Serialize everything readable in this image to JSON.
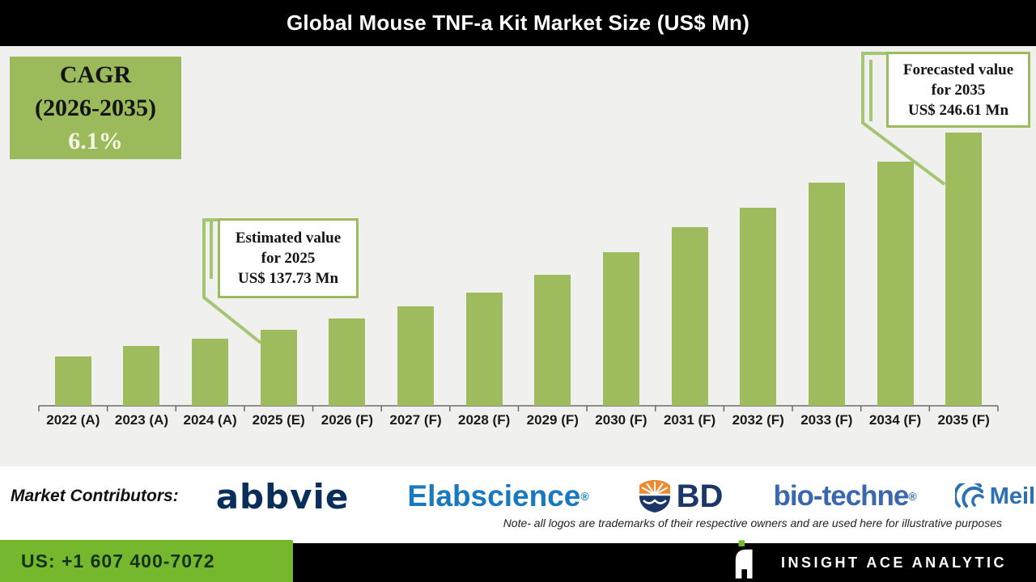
{
  "header": {
    "title": "Global Mouse TNF-a Kit Market Size (US$ Mn)"
  },
  "cagr_box": {
    "title": "CAGR",
    "range": "(2026-2035)",
    "value": "6.1%"
  },
  "callout_estimated": {
    "line1": "Estimated value",
    "line2": "for 2025",
    "line3": "US$ 137.73 Mn"
  },
  "callout_forecasted": {
    "line1": "Forecasted value",
    "line2": "for 2035",
    "line3": "US$ 246.61 Mn"
  },
  "chart_data": {
    "type": "bar",
    "title": "Global Mouse TNF-a Kit Market Size (US$ Mn)",
    "unit": "US$ Mn",
    "categories": [
      "2022 (A)",
      "2023 (A)",
      "2024 (A)",
      "2025 (E)",
      "2026 (F)",
      "2027 (F)",
      "2028 (F)",
      "2029 (F)",
      "2030 (F)",
      "2031 (F)",
      "2032 (F)",
      "2033 (F)",
      "2034 (F)",
      "2035 (F)"
    ],
    "values": [
      123.1,
      128.9,
      132.9,
      137.73,
      144.0,
      150.7,
      158.2,
      168.0,
      180.4,
      194.2,
      204.9,
      218.7,
      230.2,
      246.61
    ],
    "ylim": [
      96,
      294
    ],
    "grid": false,
    "legend": false,
    "bar_color": "#9EBB5E",
    "cagr": {
      "label": "CAGR (2026-2035)",
      "value_pct": 6.1
    },
    "annotations": [
      {
        "target": "2025 (E)",
        "text": "Estimated value for 2025 US$ 137.73 Mn",
        "value": 137.73
      },
      {
        "target": "2035 (F)",
        "text": "Forecasted value for 2035 US$ 246.61 Mn",
        "value": 246.61
      }
    ]
  },
  "contributors": {
    "label": "Market Contributors:",
    "logos": [
      {
        "name": "abbvie",
        "text": "abbvie"
      },
      {
        "name": "Elabscience",
        "text": "Elabscience",
        "reg": "®"
      },
      {
        "name": "BD",
        "text": "BD"
      },
      {
        "name": "bio-techne",
        "text": "bio-techne",
        "reg": "®"
      },
      {
        "name": "MeilunBio",
        "text": "MeilunBio",
        "reg": "®"
      }
    ]
  },
  "note": "Note- all logos are trademarks of their respective owners and are used here for illustrative purposes",
  "footer": {
    "phone": "US: +1 607 400-7072",
    "brand": "INSIGHT ACE ANALYTIC"
  },
  "colors": {
    "bar": "#9EBB5E",
    "leader_line": "#A6C573",
    "cagr_bg": "#9BBA5B",
    "contact_bg": "#76B82D",
    "panel_bg": "#F0F0EE",
    "header_bg": "#000000",
    "elabscience_blue": "#1879BF",
    "abbvie_navy": "#0A2D5A",
    "bd_navy": "#1B3668",
    "biotechne_blue": "#3A67AE",
    "meilunbio_blue": "#2B6FB5"
  }
}
